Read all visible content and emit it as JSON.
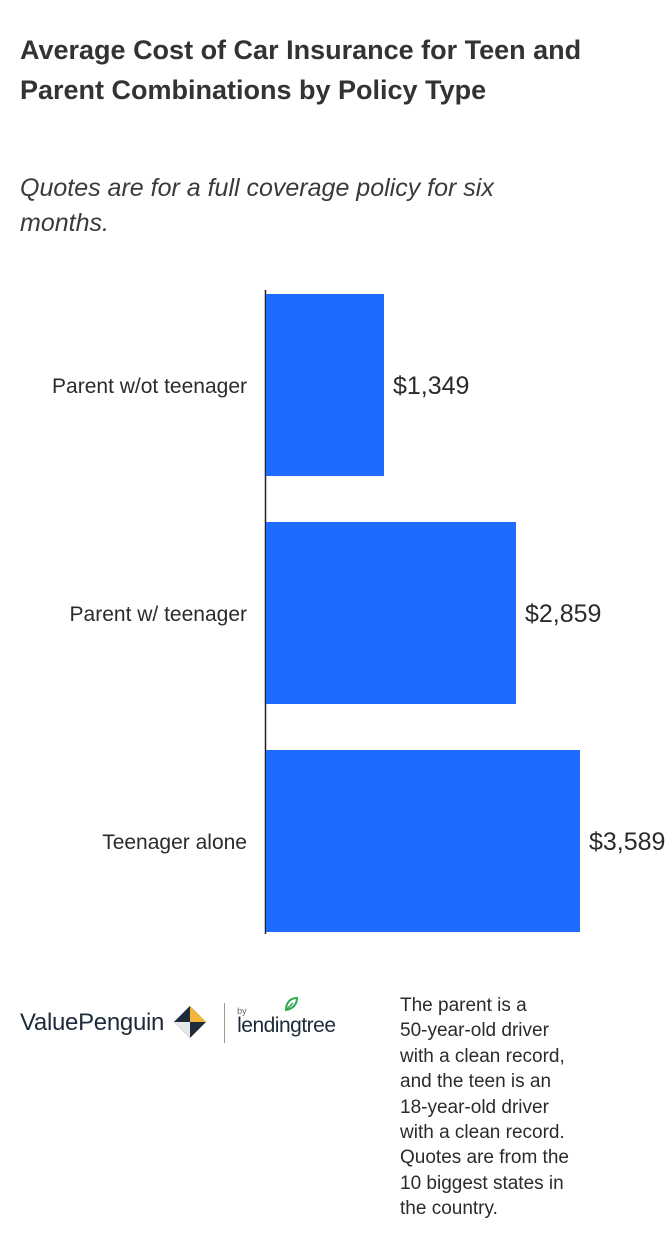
{
  "header": {
    "title": "Average Cost of Car Insurance for Teen and Parent Combinations by Policy Type",
    "subtitle": "Quotes are for a full coverage policy for six months."
  },
  "chart_data": {
    "type": "bar",
    "orientation": "horizontal",
    "categories": [
      "Parent w/ot teenager",
      "Parent w/ teenager",
      "Teenager alone"
    ],
    "values": [
      1349,
      2859,
      3589
    ],
    "value_labels": [
      "$1,349",
      "$2,859",
      "$3,589"
    ],
    "bar_color": "#1f6bff",
    "title": "Average Cost of Car Insurance for Teen and Parent Combinations by Policy Type",
    "xlabel": "",
    "ylabel": "",
    "grid": false
  },
  "footer": {
    "brand": "ValuePenguin",
    "by": "by",
    "partner": "lendingtree",
    "note": "The parent is a\n50-year-old driver\nwith a clean record,\nand the teen is an\n18-year-old driver\nwith a clean record.\nQuotes are from the\n10 biggest states in\nthe country."
  },
  "colors": {
    "bar": "#1f6bff",
    "text": "#2b2b2b",
    "logo_navy": "#1d2b3a",
    "logo_gold": "#f2b53a",
    "leaf_green": "#2eaa4f"
  }
}
